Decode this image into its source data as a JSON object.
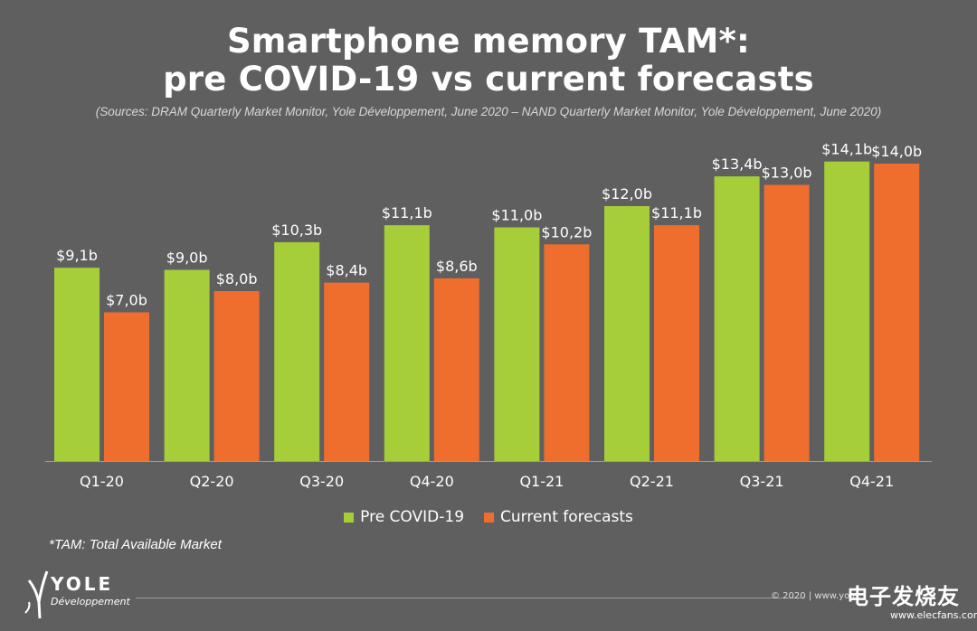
{
  "header": {
    "title_line1": "Smartphone memory TAM*:",
    "title_line2": "pre COVID-19 vs current forecasts",
    "sources": "(Sources: DRAM Quarterly Market Monitor, Yole Développement, June 2020 – NAND Quarterly Market Monitor, Yole Développement, June 2020)"
  },
  "chart_data": {
    "type": "bar",
    "categories": [
      "Q1-20",
      "Q2-20",
      "Q3-20",
      "Q4-20",
      "Q1-21",
      "Q2-21",
      "Q3-21",
      "Q4-21"
    ],
    "series": [
      {
        "name": "Pre COVID-19",
        "color": "#a6ce39",
        "values": [
          9.1,
          9.0,
          10.3,
          11.1,
          11.0,
          12.0,
          13.4,
          14.1
        ],
        "labels": [
          "$9,1b",
          "$9,0b",
          "$10,3b",
          "$11,1b",
          "$11,0b",
          "$12,0b",
          "$13,4b",
          "$14,1b"
        ]
      },
      {
        "name": "Current forecasts",
        "color": "#ef6e2e",
        "values": [
          7.0,
          8.0,
          8.4,
          8.6,
          10.2,
          11.1,
          13.0,
          14.0
        ],
        "labels": [
          "$7,0b",
          "$8,0b",
          "$8,4b",
          "$8,6b",
          "$10,2b",
          "$11,1b",
          "$13,0b",
          "$14,0b"
        ]
      }
    ],
    "grid": false,
    "legend_position": "bottom"
  },
  "footnote": "*TAM: Total Available Market",
  "logo": {
    "name": "YOLE",
    "sub": "Développement"
  },
  "copyright": "© 2020 | www.yole",
  "watermark": {
    "text": "电子发烧友",
    "url": "www.elecfans.com"
  }
}
